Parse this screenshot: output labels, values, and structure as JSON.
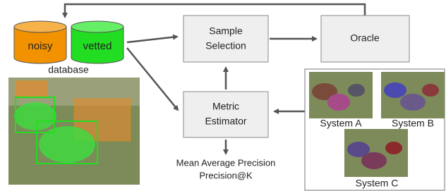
{
  "database": {
    "noisy": "noisy",
    "vetted": "vetted",
    "label": "database"
  },
  "nodes": [
    {
      "lines": [
        "Sample",
        "Selection"
      ]
    },
    {
      "lines": [
        "Oracle"
      ]
    },
    {
      "lines": [
        "Metric",
        "Estimator"
      ]
    }
  ],
  "outputs": [
    "Mean Average Precision",
    "Precision@K"
  ],
  "systems": [
    "System A",
    "System B",
    "System C"
  ]
}
